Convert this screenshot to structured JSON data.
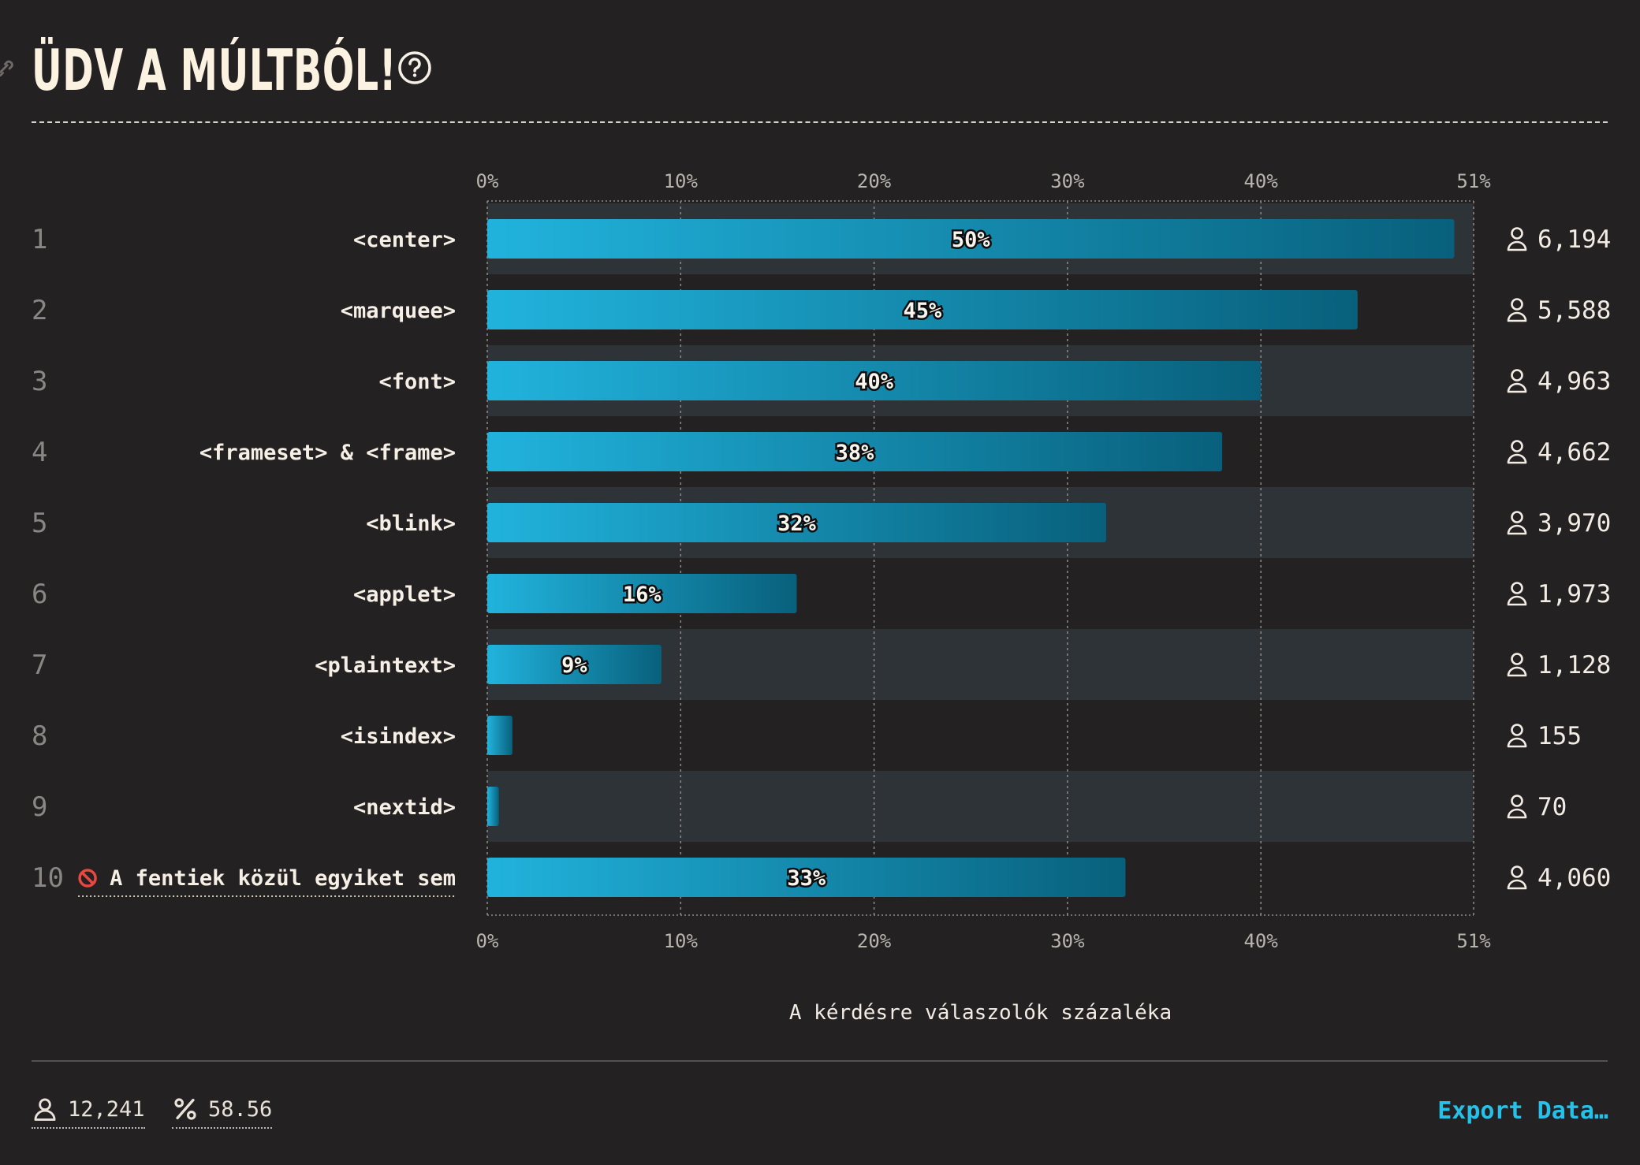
{
  "header": {
    "title": "ÜDV A MÚLTBÓL!"
  },
  "chart_data": {
    "type": "bar",
    "orientation": "horizontal",
    "title": "ÜDV A MÚLTBÓL!",
    "xlabel": "A kérdésre válaszolók százaléka",
    "xlim": [
      0,
      51
    ],
    "x_ticks": [
      "0%",
      "10%",
      "20%",
      "30%",
      "40%",
      "51%"
    ],
    "grid": true,
    "categories": [
      "<center>",
      "<marquee>",
      "<font>",
      "<frameset> & <frame>",
      "<blink>",
      "<applet>",
      "<plaintext>",
      "<isindex>",
      "<nextid>",
      "A fentiek közül egyiket sem"
    ],
    "values": [
      50,
      45,
      40,
      38,
      32,
      16,
      9,
      1.3,
      0.6,
      33
    ],
    "value_labels": [
      "50%",
      "45%",
      "40%",
      "38%",
      "32%",
      "16%",
      "9%",
      "",
      "",
      "33%"
    ],
    "counts": [
      "6,194",
      "5,588",
      "4,963",
      "4,662",
      "3,970",
      "1,973",
      "1,128",
      "155",
      "70",
      "4,060"
    ],
    "ranks": [
      "1",
      "2",
      "3",
      "4",
      "5",
      "6",
      "7",
      "8",
      "9",
      "10"
    ],
    "colors": {
      "bar_start": "#21b3dd",
      "bar_end": "#08607c",
      "stripe": "#2e3337"
    }
  },
  "footer": {
    "respondents": "12,241",
    "percentage": "58.56",
    "export_label": "Export Data…"
  },
  "icons": [
    "link-icon",
    "help-icon",
    "user-icon",
    "percent-icon",
    "prohibited-icon"
  ]
}
